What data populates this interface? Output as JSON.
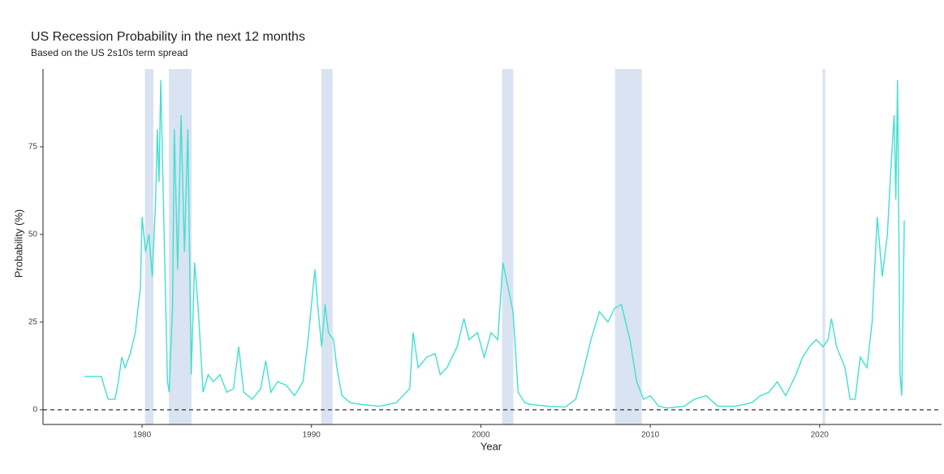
{
  "chart_data": {
    "type": "line",
    "title": "US Recession Probability in the next 12 months",
    "subtitle": "Based on the US 2s10s term spread",
    "x_label": "Year",
    "y_label": "Probability (%)",
    "color": "#40e0d0",
    "band_color": "#d9e3f2",
    "xlim": [
      1974.15,
      2027.2
    ],
    "ylim": [
      -4.2,
      97.2
    ],
    "xticks": [
      1980,
      1990,
      2000,
      2010,
      2020
    ],
    "yticks": [
      0,
      25,
      50,
      75
    ],
    "hline": 0,
    "recessions": [
      {
        "start": 1980.17,
        "end": 1980.67
      },
      {
        "start": 1981.58,
        "end": 1982.92
      },
      {
        "start": 1990.58,
        "end": 1991.25
      },
      {
        "start": 2001.25,
        "end": 2001.92
      },
      {
        "start": 2007.92,
        "end": 2009.5
      },
      {
        "start": 2020.17,
        "end": 2020.33
      }
    ],
    "x": [
      1976.6,
      1977.6,
      1977.8,
      1978.0,
      1978.4,
      1978.6,
      1978.8,
      1979.0,
      1979.3,
      1979.6,
      1979.9,
      1980.0,
      1980.2,
      1980.4,
      1980.6,
      1980.8,
      1980.9,
      1981.0,
      1981.1,
      1981.3,
      1981.5,
      1981.6,
      1981.8,
      1981.9,
      1982.1,
      1982.3,
      1982.5,
      1982.7,
      1982.9,
      1983.1,
      1983.3,
      1983.6,
      1983.9,
      1984.2,
      1984.6,
      1985.0,
      1985.4,
      1985.7,
      1986.0,
      1986.5,
      1987.0,
      1987.3,
      1987.6,
      1988.0,
      1988.5,
      1989.0,
      1989.5,
      1989.8,
      1990.0,
      1990.2,
      1990.4,
      1990.6,
      1990.8,
      1991.0,
      1991.3,
      1991.5,
      1991.8,
      1992.3,
      1993.0,
      1994.0,
      1995.0,
      1995.8,
      1996.0,
      1996.3,
      1996.8,
      1997.3,
      1997.6,
      1998.0,
      1998.6,
      1999.0,
      1999.3,
      1999.8,
      2000.2,
      2000.6,
      2001.0,
      2001.3,
      2001.6,
      2001.9,
      2002.2,
      2002.6,
      2003.0,
      2004.0,
      2005.0,
      2005.6,
      2006.0,
      2006.5,
      2007.0,
      2007.5,
      2007.9,
      2008.3,
      2008.8,
      2009.2,
      2009.6,
      2010.0,
      2010.5,
      2011.0,
      2012.0,
      2012.6,
      2013.3,
      2014.0,
      2015.0,
      2016.0,
      2016.5,
      2017.0,
      2017.5,
      2018.0,
      2018.6,
      2019.0,
      2019.4,
      2019.8,
      2020.2,
      2020.5,
      2020.7,
      2021.0,
      2021.5,
      2021.8,
      2022.1,
      2022.4,
      2022.8,
      2023.1,
      2023.4,
      2023.7,
      2024.0,
      2024.2,
      2024.4,
      2024.5,
      2024.6,
      2024.75,
      2024.85,
      2025.0
    ],
    "values": [
      9.5,
      9.5,
      6,
      3,
      3,
      8,
      15,
      12,
      16,
      22,
      35,
      55,
      45,
      50,
      38,
      60,
      80,
      65,
      94,
      50,
      8,
      5,
      30,
      80,
      40,
      84,
      45,
      80,
      10,
      42,
      30,
      5,
      10,
      8,
      10,
      5,
      6,
      18,
      5,
      3,
      6,
      14,
      5,
      8,
      7,
      4,
      8,
      20,
      30,
      40,
      28,
      18,
      30,
      22,
      20,
      12,
      4,
      2,
      1.5,
      1,
      2,
      6,
      22,
      12,
      15,
      16,
      10,
      12,
      18,
      26,
      20,
      22,
      15,
      22,
      20,
      42,
      35,
      28,
      5,
      2,
      1.5,
      1,
      0.8,
      3,
      10,
      20,
      28,
      25,
      29,
      30,
      20,
      8,
      3,
      4,
      1,
      0.5,
      1,
      3,
      4,
      1,
      1,
      2,
      4,
      5,
      8,
      4,
      10,
      15,
      18,
      20,
      18,
      20,
      26,
      18,
      12,
      3,
      3,
      15,
      12,
      25,
      55,
      38,
      50,
      68,
      84,
      60,
      94,
      10,
      4,
      54
    ]
  }
}
